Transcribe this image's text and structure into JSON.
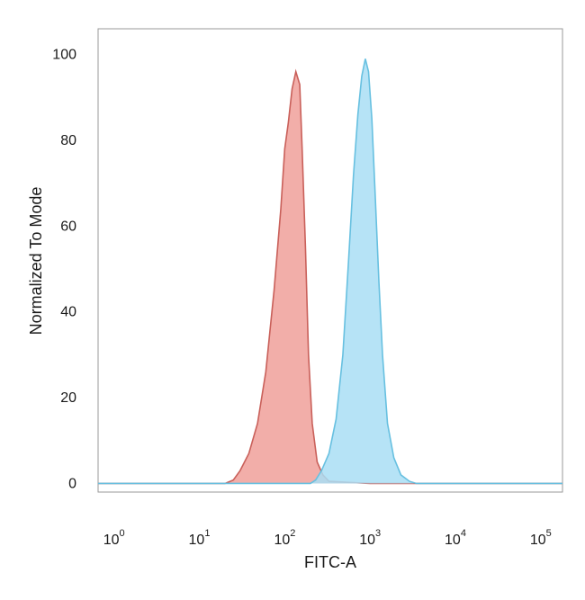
{
  "chart_data": {
    "type": "area",
    "title": "",
    "xlabel": "FITC-A",
    "ylabel": "Normalized To Mode",
    "x_scale": "log",
    "xlim": [
      0.65,
      180000
    ],
    "ylim": [
      -2,
      106
    ],
    "x_ticks": [
      {
        "base": "10",
        "exp": "0"
      },
      {
        "base": "10",
        "exp": "1"
      },
      {
        "base": "10",
        "exp": "2"
      },
      {
        "base": "10",
        "exp": "3"
      },
      {
        "base": "10",
        "exp": "4"
      },
      {
        "base": "10",
        "exp": "5"
      }
    ],
    "y_ticks": [
      "0",
      "20",
      "40",
      "60",
      "80",
      "100"
    ],
    "grid": false,
    "legend": "none",
    "series": [
      {
        "color": "#f0a09a",
        "stroke": "#c9605a",
        "points": [
          [
            0.65,
            0
          ],
          [
            20,
            0
          ],
          [
            25,
            0.8
          ],
          [
            30,
            3
          ],
          [
            38,
            7
          ],
          [
            48,
            14
          ],
          [
            60,
            26
          ],
          [
            75,
            45
          ],
          [
            90,
            64
          ],
          [
            100,
            78
          ],
          [
            110,
            84
          ],
          [
            122,
            92
          ],
          [
            135,
            96
          ],
          [
            150,
            93
          ],
          [
            160,
            78
          ],
          [
            175,
            55
          ],
          [
            190,
            30
          ],
          [
            210,
            14
          ],
          [
            240,
            5
          ],
          [
            280,
            2
          ],
          [
            330,
            0.5
          ],
          [
            1000,
            0
          ],
          [
            180000,
            0
          ]
        ]
      },
      {
        "color": "#a9def5",
        "stroke": "#67c0e0",
        "points": [
          [
            0.65,
            0
          ],
          [
            200,
            0
          ],
          [
            230,
            0.8
          ],
          [
            270,
            3
          ],
          [
            330,
            7
          ],
          [
            400,
            15
          ],
          [
            480,
            30
          ],
          [
            560,
            52
          ],
          [
            640,
            72
          ],
          [
            720,
            86
          ],
          [
            800,
            95
          ],
          [
            880,
            99
          ],
          [
            960,
            96
          ],
          [
            1050,
            85
          ],
          [
            1150,
            67
          ],
          [
            1270,
            47
          ],
          [
            1400,
            30
          ],
          [
            1600,
            14
          ],
          [
            1900,
            6
          ],
          [
            2300,
            2
          ],
          [
            2900,
            0.5
          ],
          [
            3500,
            0
          ],
          [
            180000,
            0
          ]
        ]
      }
    ]
  }
}
